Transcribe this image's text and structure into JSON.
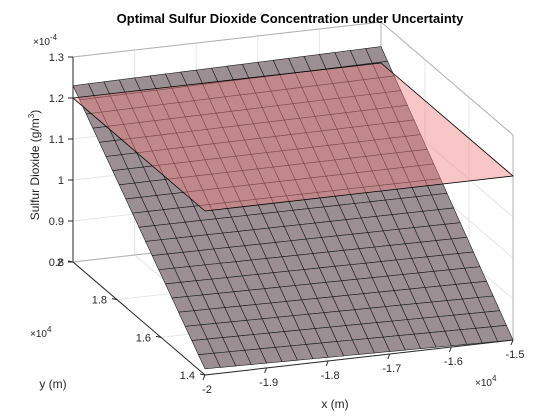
{
  "chart_data": {
    "type": "surface",
    "title": "Optimal Sulfur Dioxide Concentration under Uncertainty",
    "xlabel": "x (m)",
    "ylabel": "y (m)",
    "zlabel_main": "Sulfur Dioxide (g/m",
    "zlabel_sup": "3",
    "zlabel_close": ")",
    "x_multiplier": {
      "base": "×10",
      "exp": "4"
    },
    "y_multiplier": {
      "base": "×10",
      "exp": "4"
    },
    "z_multiplier": {
      "base": "×10",
      "exp": "-4"
    },
    "xlim": [
      -20000,
      -15000
    ],
    "ylim": [
      14000,
      20000
    ],
    "zlim": [
      8e-05,
      0.00013
    ],
    "x_ticks": [
      -2,
      -1.9,
      -1.8,
      -1.7,
      -1.6,
      -1.5
    ],
    "x_tick_labels": [
      "-2",
      "-1.9",
      "-1.8",
      "-1.7",
      "-1.6",
      "-1.5"
    ],
    "y_ticks": [
      1.4,
      1.6,
      1.8,
      2
    ],
    "y_tick_labels": [
      "1.4",
      "1.6",
      "1.8",
      "2"
    ],
    "z_ticks": [
      0.8,
      0.9,
      1,
      1.1,
      1.2,
      1.3
    ],
    "z_tick_labels": [
      "0.8",
      "0.9",
      "1",
      "1.1",
      "1.2",
      "1.3"
    ],
    "grid": true,
    "colors": {
      "surface": "#9b8f94",
      "surface_edge": "#1a1a1a",
      "plane": "#f08080",
      "plane_edge": "#000000",
      "box": "#262626"
    },
    "series": [
      {
        "kind": "surface",
        "corner_values": {
          "x_-20000_y_14000": 8.15e-05,
          "x_-15000_y_14000": 8e-05,
          "x_-20000_y_20000": 0.000123,
          "x_-15000_y_20000": 0.000124
        },
        "grid_lines": 20
      },
      {
        "kind": "plane",
        "z": 0.00012
      }
    ]
  }
}
